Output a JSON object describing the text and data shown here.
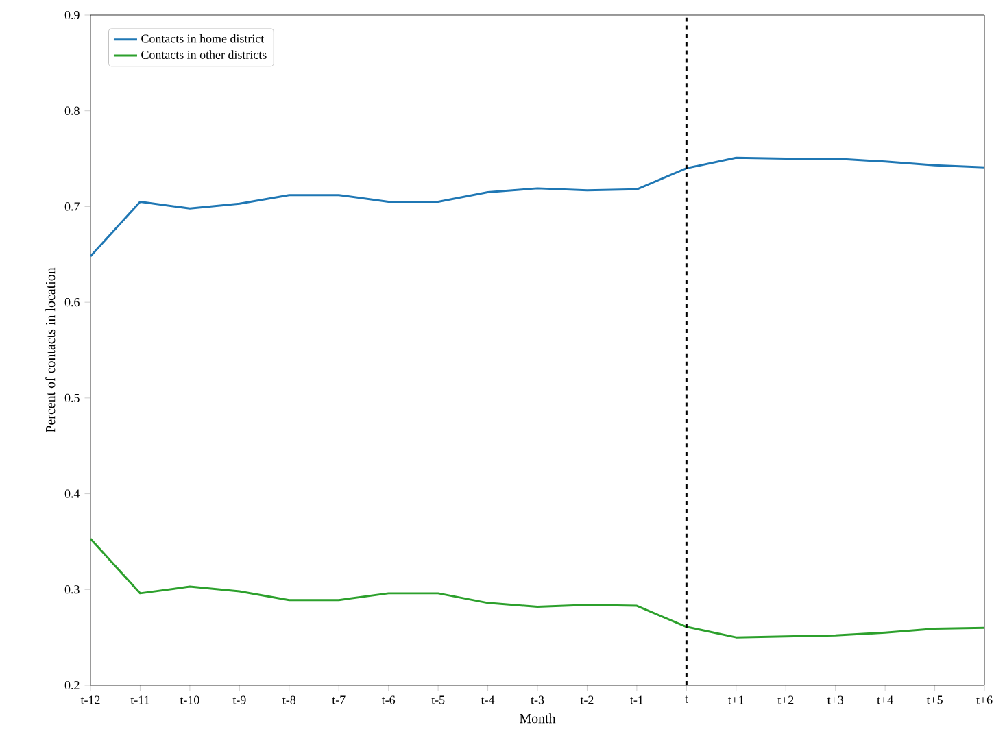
{
  "chart_data": {
    "type": "line",
    "xlabel": "Month",
    "ylabel": "Percent of contacts in location",
    "categories": [
      "t-12",
      "t-11",
      "t-10",
      "t-9",
      "t-8",
      "t-7",
      "t-6",
      "t-5",
      "t-4",
      "t-3",
      "t-2",
      "t-1",
      "t",
      "t+1",
      "t+2",
      "t+3",
      "t+4",
      "t+5",
      "t+6"
    ],
    "series": [
      {
        "name": "Contacts in home district",
        "color": "#1f77b4",
        "values": [
          0.648,
          0.705,
          0.698,
          0.703,
          0.712,
          0.712,
          0.705,
          0.705,
          0.715,
          0.719,
          0.717,
          0.718,
          0.74,
          0.751,
          0.75,
          0.75,
          0.747,
          0.743,
          0.741
        ]
      },
      {
        "name": "Contacts in other districts",
        "color": "#2ca02c",
        "values": [
          0.353,
          0.296,
          0.303,
          0.298,
          0.289,
          0.289,
          0.296,
          0.296,
          0.286,
          0.282,
          0.284,
          0.283,
          0.261,
          0.25,
          0.251,
          0.252,
          0.255,
          0.259,
          0.26
        ]
      }
    ],
    "ylim": [
      0.2,
      0.9
    ],
    "yticks": [
      0.2,
      0.3,
      0.4,
      0.5,
      0.6,
      0.7,
      0.8,
      0.9
    ],
    "ref_lines": [
      {
        "axis": "x",
        "value": "t",
        "color": "#000000",
        "line_style": "dashed"
      }
    ],
    "legend": "top left",
    "grid": false,
    "marker": "none",
    "line_style": "solid"
  }
}
